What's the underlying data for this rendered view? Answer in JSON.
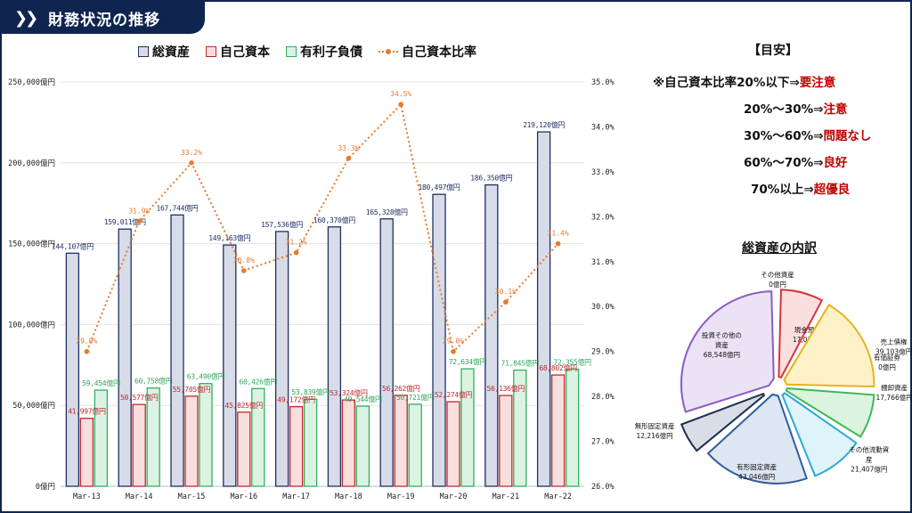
{
  "header": {
    "title": "財務状況の推移"
  },
  "legend": [
    "総資産",
    "自己資本",
    "有利子負債",
    "自己資本比率"
  ],
  "colors": {
    "total_assets_fill": "#d7dce8",
    "total_assets_stroke": "#1f2f63",
    "equity_fill": "#f9dede",
    "equity_stroke": "#c0282d",
    "debt_fill": "#dcf3e4",
    "debt_stroke": "#2fb25d",
    "ratio_line": "#e8792b",
    "frame": "#0f2550"
  },
  "chart_data": {
    "type": "bar",
    "categories": [
      "Mar-13",
      "Mar-14",
      "Mar-15",
      "Mar-16",
      "Mar-17",
      "Mar-18",
      "Mar-19",
      "Mar-20",
      "Mar-21",
      "Mar-22"
    ],
    "series": [
      {
        "name": "総資産",
        "values": [
          144107,
          159011,
          167744,
          149163,
          157536,
          160370,
          165328,
          180497,
          186350,
          219120
        ],
        "labels": [
          "144,107億円",
          "159,011億円",
          "167,744億円",
          "149,163億円",
          "157,536億円",
          "160,370億円",
          "165,328億円",
          "180,497億円",
          "186,350億円",
          "219,120億円"
        ]
      },
      {
        "name": "自己資本",
        "values": [
          41997,
          50577,
          55705,
          45825,
          49172,
          53324,
          56262,
          52274,
          56136,
          68802
        ],
        "labels": [
          "41,997億円",
          "50,577億円",
          "55,705億円",
          "45,825億円",
          "49,172億円",
          "53,324億円",
          "56,262億円",
          "52,274億円",
          "56,136億円",
          "68,802億円"
        ]
      },
      {
        "name": "有利子負債",
        "values": [
          59454,
          60758,
          63490,
          60426,
          53839,
          49544,
          50721,
          72634,
          71845,
          72355
        ],
        "labels": [
          "59,454億円",
          "60,758億円",
          "63,490億円",
          "60,426億円",
          "53,839億円",
          "49,544億円",
          "50,721億円",
          "72,634億円",
          "71,845億円",
          "72,355億円"
        ]
      },
      {
        "name": "自己資本比率",
        "axis": "right",
        "values": [
          29.0,
          31.9,
          33.2,
          30.8,
          31.2,
          33.3,
          34.5,
          29.0,
          30.1,
          31.4
        ],
        "labels": [
          "29.0%",
          "31.9%",
          "33.2%",
          "30.8%",
          "31.2%",
          "33.3%",
          "34.5%",
          "29.0%",
          "30.1%",
          "31.4%"
        ]
      }
    ],
    "ylim": [
      0,
      250000
    ],
    "y_ticks": [
      "0億円",
      "50,000億円",
      "100,000億円",
      "150,000億円",
      "200,000億円",
      "250,000億円"
    ],
    "y_tick_values": [
      0,
      50000,
      100000,
      150000,
      200000,
      250000
    ],
    "y2lim": [
      26.0,
      35.0
    ],
    "y2_ticks": [
      "26.0%",
      "27.0%",
      "28.0%",
      "29.0%",
      "30.0%",
      "31.0%",
      "32.0%",
      "33.0%",
      "34.0%",
      "35.0%"
    ],
    "y2_tick_values": [
      26,
      27,
      28,
      29,
      30,
      31,
      32,
      33,
      34,
      35
    ],
    "grid": true,
    "legend_position": "top"
  },
  "guide": {
    "title": "【目安】",
    "rows": [
      {
        "prefix": "※自己資本比率20%以下⇒",
        "status": "要注意"
      },
      {
        "prefix": "20%～30%⇒",
        "status": "注意"
      },
      {
        "prefix": "30%～60%⇒",
        "status": "問題なし"
      },
      {
        "prefix": "60%～70%⇒",
        "status": "良好"
      },
      {
        "prefix": "70%以上⇒",
        "status": "超優良"
      }
    ]
  },
  "pie": {
    "title": "総資産の内訳",
    "slices": [
      {
        "name": "その他資産",
        "value": 0,
        "value_label": "0億円",
        "color": "#f0f0f0",
        "stroke": "#888888"
      },
      {
        "name": "現金預金",
        "value": 17034,
        "value_label": "17,034億円",
        "color": "#fbdede",
        "stroke": "#d9323c"
      },
      {
        "name": "売上債権",
        "value": 39103,
        "value_label": "39,103億円",
        "color": "#fdf1c8",
        "stroke": "#e7b21b"
      },
      {
        "name": "有価証券",
        "value": 0,
        "value_label": "0億円",
        "color": "#f0f0f0",
        "stroke": "#888888"
      },
      {
        "name": "棚卸資産",
        "value": 17766,
        "value_label": "17,766億円",
        "color": "#dcf3e0",
        "stroke": "#3db85a"
      },
      {
        "name": "その他流動資産",
        "value": 21407,
        "value_label": "21,407億円",
        "color": "#dff3fb",
        "stroke": "#2aa8d8"
      },
      {
        "name": "有形固定資産",
        "value": 43046,
        "value_label": "43,046億円",
        "color": "#dde6f3",
        "stroke": "#2f5e9e"
      },
      {
        "name": "無形固定資産",
        "value": 12216,
        "value_label": "12,216億円",
        "color": "#d9dde6",
        "stroke": "#1f2f4f"
      },
      {
        "name": "投資その他の資産",
        "value": 68548,
        "value_label": "68,548億円",
        "color": "#ebe2f6",
        "stroke": "#8b5bc4"
      }
    ]
  }
}
